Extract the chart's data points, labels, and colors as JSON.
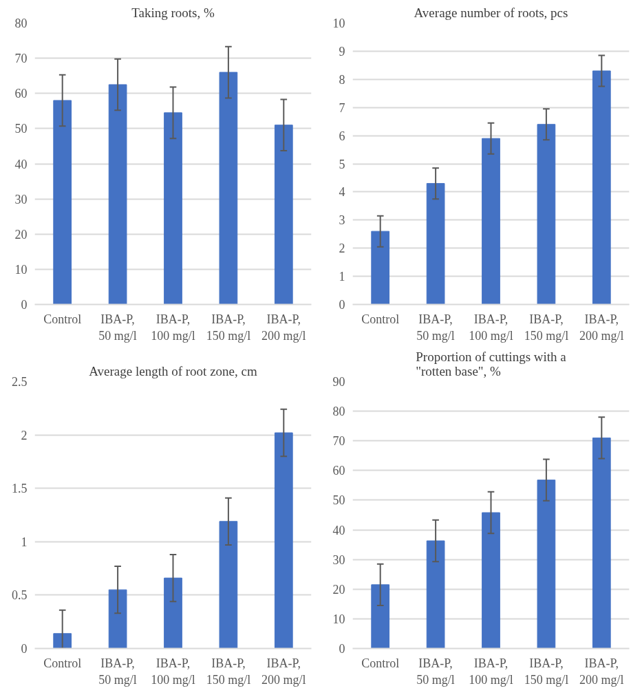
{
  "chart_data": [
    {
      "type": "bar",
      "title": "Taking roots, %",
      "categories": [
        "Control",
        "IBA-P, 50 mg/l",
        "IBA-P, 100 mg/l",
        "IBA-P, 150 mg/l",
        "IBA-P, 200 mg/l"
      ],
      "values": [
        58,
        62.5,
        54.5,
        66,
        51
      ],
      "errors": [
        7.3,
        7.3,
        7.3,
        7.3,
        7.3
      ],
      "color": "#4472c4",
      "ylim": [
        0,
        80
      ],
      "yticks": [
        0,
        10,
        20,
        30,
        40,
        50,
        60,
        70,
        80
      ],
      "grid": "y"
    },
    {
      "type": "bar",
      "title": "Average number of roots, pcs",
      "categories": [
        "Control",
        "IBA-P, 50 mg/l",
        "IBA-P, 100 mg/l",
        "IBA-P, 150 mg/l",
        "IBA-P, 200 mg/l"
      ],
      "values": [
        2.6,
        4.3,
        5.9,
        6.4,
        8.3
      ],
      "errors": [
        0.55,
        0.55,
        0.55,
        0.55,
        0.55
      ],
      "color": "#4472c4",
      "ylim": [
        0,
        10
      ],
      "yticks": [
        0,
        1,
        2,
        3,
        4,
        5,
        6,
        7,
        8,
        9,
        10
      ],
      "grid": "y"
    },
    {
      "type": "bar",
      "title": "Average length of root zone, cm",
      "categories": [
        "Control",
        "IBA-P, 50 mg/l",
        "IBA-P, 100 mg/l",
        "IBA-P, 150 mg/l",
        "IBA-P, 200 mg/l"
      ],
      "values": [
        0.14,
        0.55,
        0.66,
        1.19,
        2.02
      ],
      "errors": [
        [
          0,
          0.36
        ],
        0.22,
        0.22,
        0.22,
        0.22
      ],
      "color": "#4472c4",
      "ylim": [
        0,
        2.5
      ],
      "yticks": [
        0,
        0.5,
        1,
        1.5,
        2,
        2.5
      ],
      "grid": "y"
    },
    {
      "type": "bar",
      "title": "Proportion of cuttings with a \"rotten base\", %",
      "categories": [
        "Control",
        "IBA-P, 50 mg/l",
        "IBA-P, 100 mg/l",
        "IBA-P, 150 mg/l",
        "IBA-P, 200 mg/l"
      ],
      "values": [
        21.5,
        36.3,
        45.8,
        56.8,
        71
      ],
      "errors": [
        7,
        7,
        7,
        7,
        7
      ],
      "color": "#4472c4",
      "ylim": [
        0,
        90
      ],
      "yticks": [
        0,
        10,
        20,
        30,
        40,
        50,
        60,
        70,
        80,
        90
      ],
      "grid": "y"
    }
  ]
}
